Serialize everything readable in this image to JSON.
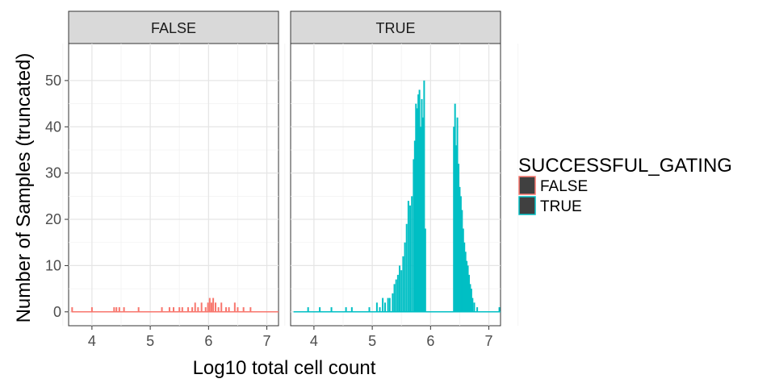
{
  "chart_data": {
    "type": "bar",
    "subtype": "faceted histogram (outline only)",
    "facet_variable": "SUCCESSFUL_GATING",
    "facets": [
      "FALSE",
      "TRUE"
    ],
    "xlabel": "Log10 total cell count",
    "ylabel": "Number of Samples (truncated)",
    "xlim": [
      3.6,
      7.2
    ],
    "ylim": [
      -3,
      58
    ],
    "x_ticks": [
      4,
      5,
      6,
      7
    ],
    "y_ticks": [
      0,
      10,
      20,
      30,
      40,
      50
    ],
    "grid": true,
    "legend_position": "right",
    "legend": {
      "title": "SUCCESSFUL_GATING",
      "entries": [
        {
          "label": "FALSE",
          "color": "#F8766D"
        },
        {
          "label": "TRUE",
          "color": "#00BFC4"
        }
      ]
    },
    "series": [
      {
        "name": "FALSE",
        "color": "#F8766D",
        "x_range": [
          3.65,
          7.2
        ],
        "points": [
          [
            3.66,
            1
          ],
          [
            4.0,
            1
          ],
          [
            4.38,
            1
          ],
          [
            4.42,
            1
          ],
          [
            4.47,
            1
          ],
          [
            4.55,
            1
          ],
          [
            4.8,
            1
          ],
          [
            5.2,
            1
          ],
          [
            5.33,
            1
          ],
          [
            5.4,
            1
          ],
          [
            5.5,
            1
          ],
          [
            5.55,
            1
          ],
          [
            5.65,
            1
          ],
          [
            5.72,
            1
          ],
          [
            5.77,
            2
          ],
          [
            5.82,
            1
          ],
          [
            5.88,
            2
          ],
          [
            5.95,
            1
          ],
          [
            5.99,
            2
          ],
          [
            6.02,
            3
          ],
          [
            6.05,
            2
          ],
          [
            6.08,
            3
          ],
          [
            6.12,
            2
          ],
          [
            6.17,
            1
          ],
          [
            6.22,
            2
          ],
          [
            6.3,
            1
          ],
          [
            6.35,
            1
          ],
          [
            6.45,
            2
          ],
          [
            6.5,
            1
          ],
          [
            6.6,
            1
          ],
          [
            6.72,
            1
          ]
        ]
      },
      {
        "name": "TRUE",
        "color": "#00BFC4",
        "x_range": [
          3.65,
          7.2
        ],
        "points": [
          [
            3.9,
            1
          ],
          [
            4.1,
            1
          ],
          [
            4.3,
            1
          ],
          [
            4.55,
            1
          ],
          [
            4.65,
            1
          ],
          [
            4.95,
            1
          ],
          [
            5.08,
            2
          ],
          [
            5.13,
            1
          ],
          [
            5.18,
            3
          ],
          [
            5.22,
            2
          ],
          [
            5.27,
            3
          ],
          [
            5.3,
            3
          ],
          [
            5.35,
            4
          ],
          [
            5.38,
            6
          ],
          [
            5.41,
            7
          ],
          [
            5.44,
            8
          ],
          [
            5.47,
            10
          ],
          [
            5.5,
            9
          ],
          [
            5.53,
            12
          ],
          [
            5.56,
            15
          ],
          [
            5.59,
            19
          ],
          [
            5.62,
            24
          ],
          [
            5.65,
            23
          ],
          [
            5.68,
            25
          ],
          [
            5.71,
            33
          ],
          [
            5.73,
            37
          ],
          [
            5.75,
            45
          ],
          [
            5.77,
            44
          ],
          [
            5.79,
            47
          ],
          [
            5.81,
            48
          ],
          [
            5.83,
            40
          ],
          [
            5.85,
            46
          ],
          [
            5.87,
            42
          ],
          [
            5.89,
            50
          ],
          [
            5.91,
            18
          ],
          [
            6.4,
            40
          ],
          [
            6.42,
            45
          ],
          [
            6.44,
            36
          ],
          [
            6.46,
            42
          ],
          [
            6.48,
            32
          ],
          [
            6.5,
            27
          ],
          [
            6.52,
            25
          ],
          [
            6.54,
            22
          ],
          [
            6.56,
            18
          ],
          [
            6.58,
            15
          ],
          [
            6.6,
            13
          ],
          [
            6.62,
            11
          ],
          [
            6.64,
            10
          ],
          [
            6.66,
            8
          ],
          [
            6.68,
            6
          ],
          [
            6.7,
            5
          ],
          [
            6.72,
            3
          ],
          [
            6.75,
            2
          ],
          [
            6.8,
            1
          ],
          [
            7.18,
            1
          ]
        ]
      }
    ]
  }
}
